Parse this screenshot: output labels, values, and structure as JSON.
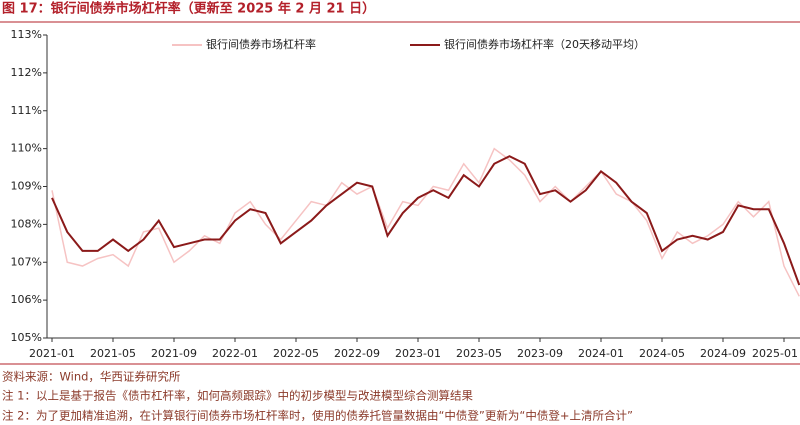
{
  "title": "图 17：银行间债券市场杠杆率（更新至 2025 年 2 月 21 日）",
  "chart_data": {
    "type": "line",
    "x": [
      "2021-01",
      "2021-02",
      "2021-03",
      "2021-04",
      "2021-05",
      "2021-06",
      "2021-07",
      "2021-08",
      "2021-09",
      "2021-10",
      "2021-11",
      "2021-12",
      "2022-01",
      "2022-02",
      "2022-03",
      "2022-04",
      "2022-05",
      "2022-06",
      "2022-07",
      "2022-08",
      "2022-09",
      "2022-10",
      "2022-11",
      "2022-12",
      "2023-01",
      "2023-02",
      "2023-03",
      "2023-04",
      "2023-05",
      "2023-06",
      "2023-07",
      "2023-08",
      "2023-09",
      "2023-10",
      "2023-11",
      "2023-12",
      "2024-01",
      "2024-02",
      "2024-03",
      "2024-04",
      "2024-05",
      "2024-06",
      "2024-07",
      "2024-08",
      "2024-09",
      "2024-10",
      "2024-11",
      "2024-12",
      "2025-01",
      "2025-02"
    ],
    "series": [
      {
        "name": "银行间债券市场杠杆率",
        "color": "#f6c3c3",
        "values": [
          108.9,
          107.0,
          106.9,
          107.1,
          107.2,
          106.9,
          107.8,
          107.9,
          107.0,
          107.3,
          107.7,
          107.5,
          108.3,
          108.6,
          108.0,
          107.6,
          108.1,
          108.6,
          108.5,
          109.1,
          108.8,
          109.0,
          107.9,
          108.6,
          108.5,
          109.0,
          108.9,
          109.6,
          109.1,
          110.0,
          109.7,
          109.3,
          108.6,
          109.0,
          108.6,
          109.0,
          109.4,
          108.8,
          108.6,
          108.1,
          107.1,
          107.8,
          107.5,
          107.7,
          108.0,
          108.6,
          108.2,
          108.6,
          106.9,
          106.1
        ]
      },
      {
        "name": "银行间债券市场杠杆率（20天移动平均）",
        "color": "#8b1a1a",
        "values": [
          108.7,
          107.8,
          107.3,
          107.3,
          107.6,
          107.3,
          107.6,
          108.1,
          107.4,
          107.5,
          107.6,
          107.6,
          108.1,
          108.4,
          108.3,
          107.5,
          107.8,
          108.1,
          108.5,
          108.8,
          109.1,
          109.0,
          107.7,
          108.3,
          108.7,
          108.9,
          108.7,
          109.3,
          109.0,
          109.6,
          109.8,
          109.6,
          108.8,
          108.9,
          108.6,
          108.9,
          109.4,
          109.1,
          108.6,
          108.3,
          107.3,
          107.6,
          107.7,
          107.6,
          107.8,
          108.5,
          108.4,
          108.4,
          107.5,
          106.4
        ]
      }
    ],
    "ylim": [
      105,
      113
    ],
    "yticks": [
      {
        "value": 105,
        "label": "105%"
      },
      {
        "value": 106,
        "label": "106%"
      },
      {
        "value": 107,
        "label": "107%"
      },
      {
        "value": 108,
        "label": "108%"
      },
      {
        "value": 109,
        "label": "109%"
      },
      {
        "value": 110,
        "label": "110%"
      },
      {
        "value": 111,
        "label": "111%"
      },
      {
        "value": 112,
        "label": "112%"
      },
      {
        "value": 113,
        "label": "113%"
      }
    ],
    "grid": false
  },
  "notes": [
    "资料来源：Wind，华西证券研究所",
    "注 1：以上是基于报告《债市杠杆率，如何高频跟踪》中的初步模型与改进模型综合测算结果",
    "注 2：为了更加精准追溯，在计算银行间债券市场杠杆率时，使用的债券托管量数据由“中债登”更新为“中债登+上清所合计”"
  ]
}
